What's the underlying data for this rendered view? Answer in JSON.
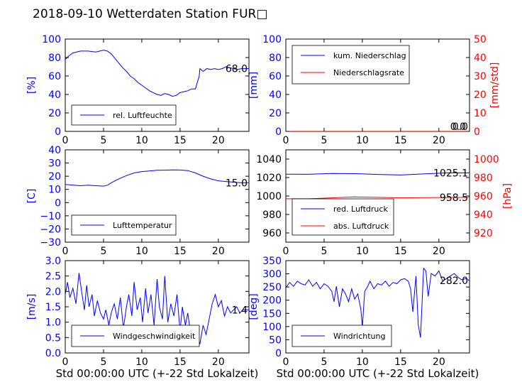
{
  "title": "2018-09-10 Wetterdaten Station FUR□",
  "xlabel": "Std 00:00:00 UTC (+-22 Std Lokalzeit)",
  "chart_data": [
    {
      "type": "line",
      "panel": "humidity",
      "ylabel": "[%]",
      "ylim": [
        0,
        100
      ],
      "yticks": [
        "0",
        "20",
        "40",
        "60",
        "80",
        "100"
      ],
      "xlim": [
        0,
        24
      ],
      "xticks": [
        "0",
        "5",
        "10",
        "15",
        "20"
      ],
      "last_value_label": "68.0",
      "legend_position": "lower-left",
      "series": [
        {
          "name": "rel. Luftfeuchte",
          "color": "#0000ff",
          "x": [
            0,
            0.5,
            1,
            2,
            3,
            4,
            5,
            5.5,
            6,
            6.5,
            7,
            7.5,
            8,
            8.5,
            9,
            9.5,
            10,
            10.5,
            11,
            11.5,
            12,
            12.5,
            13,
            13.5,
            14,
            14.5,
            15,
            15.5,
            16,
            16.5,
            17,
            17.5,
            17.6,
            18,
            18.5,
            19,
            19.5,
            20,
            20.5,
            21,
            21.5,
            22,
            22.5,
            23,
            24
          ],
          "y": [
            78,
            82,
            85,
            87,
            87,
            86,
            88,
            87,
            84,
            79,
            74,
            69,
            65,
            60,
            57,
            53,
            50,
            47,
            44,
            42,
            40,
            39,
            41,
            40,
            38,
            39,
            42,
            43,
            44,
            46,
            46,
            60,
            68,
            65,
            68,
            67,
            68,
            67,
            68,
            70,
            69,
            68,
            67,
            68,
            68
          ]
        }
      ]
    },
    {
      "type": "line",
      "panel": "precipitation",
      "ylabel": "[mm]",
      "ylabel_right": "[mm/std]",
      "ylim": [
        0,
        100
      ],
      "ylim_right": [
        0,
        50
      ],
      "yticks": [
        "0",
        "20",
        "40",
        "60",
        "80",
        "100"
      ],
      "yticks_right": [
        "0",
        "10",
        "20",
        "30",
        "40",
        "50"
      ],
      "xlim": [
        0,
        24
      ],
      "xticks": [
        "0",
        "5",
        "10",
        "15",
        "20"
      ],
      "last_value_label": "0.0",
      "last_value_label_2": "0.0",
      "legend_position": "upper-left",
      "series": [
        {
          "name": "kum. Niederschlag",
          "color": "#0000ff",
          "x": [
            0,
            24
          ],
          "y": [
            0,
            0
          ]
        },
        {
          "name": "Niederschlagsrate",
          "color": "#ff0000",
          "x": [
            0,
            24
          ],
          "y": [
            0,
            0
          ]
        }
      ]
    },
    {
      "type": "line",
      "panel": "temperature",
      "ylabel": "[C]",
      "ylim": [
        -30,
        40
      ],
      "yticks": [
        "−30",
        "−20",
        "−10",
        "0",
        "10",
        "20",
        "30",
        "40"
      ],
      "xlim": [
        0,
        24
      ],
      "xticks": [
        "0",
        "5",
        "10",
        "15",
        "20"
      ],
      "last_value_label": "15.0",
      "legend_position": "lower-left",
      "series": [
        {
          "name": "Lufttemperatur",
          "color": "#0000ff",
          "x": [
            0,
            1,
            2,
            3,
            4,
            5,
            5.5,
            6,
            7,
            8,
            9,
            10,
            11,
            12,
            13,
            14,
            15,
            16,
            17,
            18,
            19,
            20,
            21,
            22,
            23,
            24
          ],
          "y": [
            13.8,
            13.3,
            12.8,
            13.2,
            12.8,
            12.5,
            13.2,
            15,
            18,
            20.5,
            22.5,
            23.5,
            24,
            24.5,
            24.6,
            24.8,
            24.7,
            24.3,
            22.5,
            20,
            18,
            16.5,
            16,
            15.5,
            15,
            15
          ]
        }
      ]
    },
    {
      "type": "line",
      "panel": "pressure",
      "ylabel_right": "[hPa]",
      "ylim": [
        950,
        1050
      ],
      "ylim_right": [
        910,
        1010
      ],
      "yticks": [
        "960",
        "980",
        "1000",
        "1020",
        "1040"
      ],
      "yticks_right": [
        "920",
        "940",
        "960",
        "980",
        "1000"
      ],
      "xlim": [
        0,
        24
      ],
      "xticks": [
        "0",
        "5",
        "10",
        "15",
        "20"
      ],
      "last_value_label": "1025.1",
      "last_value_label_2": "958.5",
      "legend_position": "lower-left",
      "series": [
        {
          "name": "red. Luftdruck",
          "color": "#0000ff",
          "x": [
            0,
            3,
            6,
            9,
            12,
            15,
            18,
            21,
            24
          ],
          "y": [
            1023.7,
            1023.5,
            1024.4,
            1024.2,
            1023.4,
            1022.8,
            1023.9,
            1025,
            1025.1
          ]
        },
        {
          "name": "abs. Luftdruck",
          "color": "#ff0000",
          "x": [
            0,
            3,
            6,
            9,
            12,
            15,
            18,
            21,
            24
          ],
          "y": [
            957,
            957,
            958,
            959,
            958.5,
            958,
            958.2,
            958.4,
            958.5
          ]
        }
      ]
    },
    {
      "type": "line",
      "panel": "wind-speed",
      "ylabel": "[m/s]",
      "ylim": [
        0,
        3
      ],
      "yticks": [
        "0.0",
        "0.5",
        "1.0",
        "1.5",
        "2.0",
        "2.5",
        "3.0"
      ],
      "xlim": [
        0,
        24
      ],
      "xticks": [
        "0",
        "5",
        "10",
        "15",
        "20"
      ],
      "last_value_label": "1.4",
      "legend_position": "lower-left",
      "series": [
        {
          "name": "Windgeschwindigkeit",
          "color": "#0000ff",
          "x": [
            0,
            0.3,
            0.6,
            1,
            1.4,
            1.8,
            2.2,
            2.5,
            2.8,
            3.1,
            3.5,
            3.8,
            4.2,
            4.6,
            5,
            5.3,
            5.7,
            6,
            6.4,
            6.8,
            7.2,
            7.6,
            8,
            8.3,
            8.7,
            9,
            9.4,
            9.8,
            10.1,
            10.5,
            10.8,
            11.2,
            11.6,
            12,
            12.3,
            12.7,
            13,
            13.4,
            13.8,
            14.2,
            14.6,
            15,
            15.3,
            15.7,
            16,
            16.4,
            16.8,
            17.2,
            17.6,
            18,
            18.4,
            18.8,
            19.2,
            19.6,
            20,
            20.4,
            20.8,
            21.2,
            21.6,
            22,
            22.4,
            22.8,
            23.2,
            23.6,
            24
          ],
          "y": [
            1.9,
            2.3,
            1.8,
            2.1,
            1.6,
            2.6,
            1.9,
            1.4,
            2.2,
            1.5,
            1.9,
            1.2,
            1.7,
            1.3,
            1.1,
            1.4,
            0.9,
            1.3,
            1.6,
            1.1,
            1.8,
            0.8,
            1.5,
            1.9,
            1.2,
            2.3,
            1.4,
            1.8,
            1.0,
            2.1,
            1.3,
            1.9,
            0.9,
            2.4,
            1.5,
            1.1,
            2.5,
            1.0,
            1.6,
            1.2,
            1.9,
            0.7,
            1.5,
            0.9,
            1.3,
            0.6,
            0.8,
            0.5,
            0.3,
            0.9,
            0.6,
            1.1,
            1.6,
            1.9,
            1.5,
            1.7,
            1.2,
            1.5,
            1.3,
            1.4,
            1.5,
            1.3,
            1.4,
            1.4,
            1.4
          ]
        }
      ]
    },
    {
      "type": "line",
      "panel": "wind-direction",
      "ylabel": "[deg]",
      "ylim": [
        0,
        360
      ],
      "yticks": [
        "0",
        "50",
        "100",
        "150",
        "200",
        "250",
        "300",
        "350"
      ],
      "xlim": [
        0,
        24
      ],
      "xticks": [
        "0",
        "5",
        "10",
        "15",
        "20"
      ],
      "last_value_label": "282.0",
      "legend_position": "lower-left",
      "series": [
        {
          "name": "Windrichtung",
          "color": "#0000ff",
          "x": [
            0,
            0.5,
            1,
            1.5,
            2,
            2.5,
            3,
            3.5,
            4,
            4.5,
            5,
            5.5,
            6,
            6.3,
            6.6,
            7,
            7.4,
            7.8,
            8.2,
            8.6,
            9,
            9.4,
            9.8,
            10,
            10.3,
            10.7,
            11,
            11.5,
            12,
            12.5,
            13,
            13.5,
            14,
            14.5,
            15,
            15.5,
            16,
            16.3,
            16.6,
            17,
            17.3,
            17.6,
            18,
            18.3,
            18.6,
            19,
            19.5,
            20,
            20.5,
            21,
            21.5,
            22,
            22.5,
            23,
            23.5,
            24
          ],
          "y": [
            255,
            275,
            260,
            280,
            270,
            265,
            285,
            260,
            275,
            250,
            270,
            260,
            240,
            200,
            260,
            180,
            250,
            230,
            200,
            250,
            210,
            230,
            170,
            100,
            240,
            260,
            280,
            250,
            270,
            265,
            280,
            260,
            275,
            270,
            285,
            290,
            280,
            250,
            160,
            300,
            110,
            60,
            330,
            320,
            220,
            310,
            300,
            320,
            280,
            290,
            300,
            310,
            295,
            285,
            290,
            282
          ]
        }
      ]
    }
  ]
}
